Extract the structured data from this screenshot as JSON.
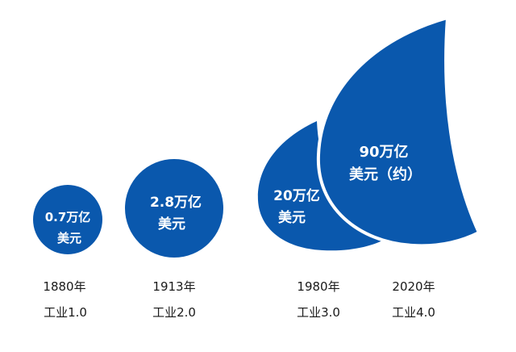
{
  "colors": {
    "bubble": "#0a58ad",
    "outline": "#ffffff",
    "caption": "#1a1a1a"
  },
  "stages": [
    {
      "value_line1": "0.7万亿",
      "value_line2": "美元",
      "year": "1880年",
      "label": "工业1.0"
    },
    {
      "value_line1": "2.8万亿",
      "value_line2": "美元",
      "year": "1913年",
      "label": "工业2.0"
    },
    {
      "value_line1": "20万亿",
      "value_line2": "美元",
      "year": "1980年",
      "label": "工业3.0"
    },
    {
      "value_line1": "90万亿",
      "value_line2": "美元（约）",
      "year": "2020年",
      "label": "工业4.0"
    }
  ]
}
